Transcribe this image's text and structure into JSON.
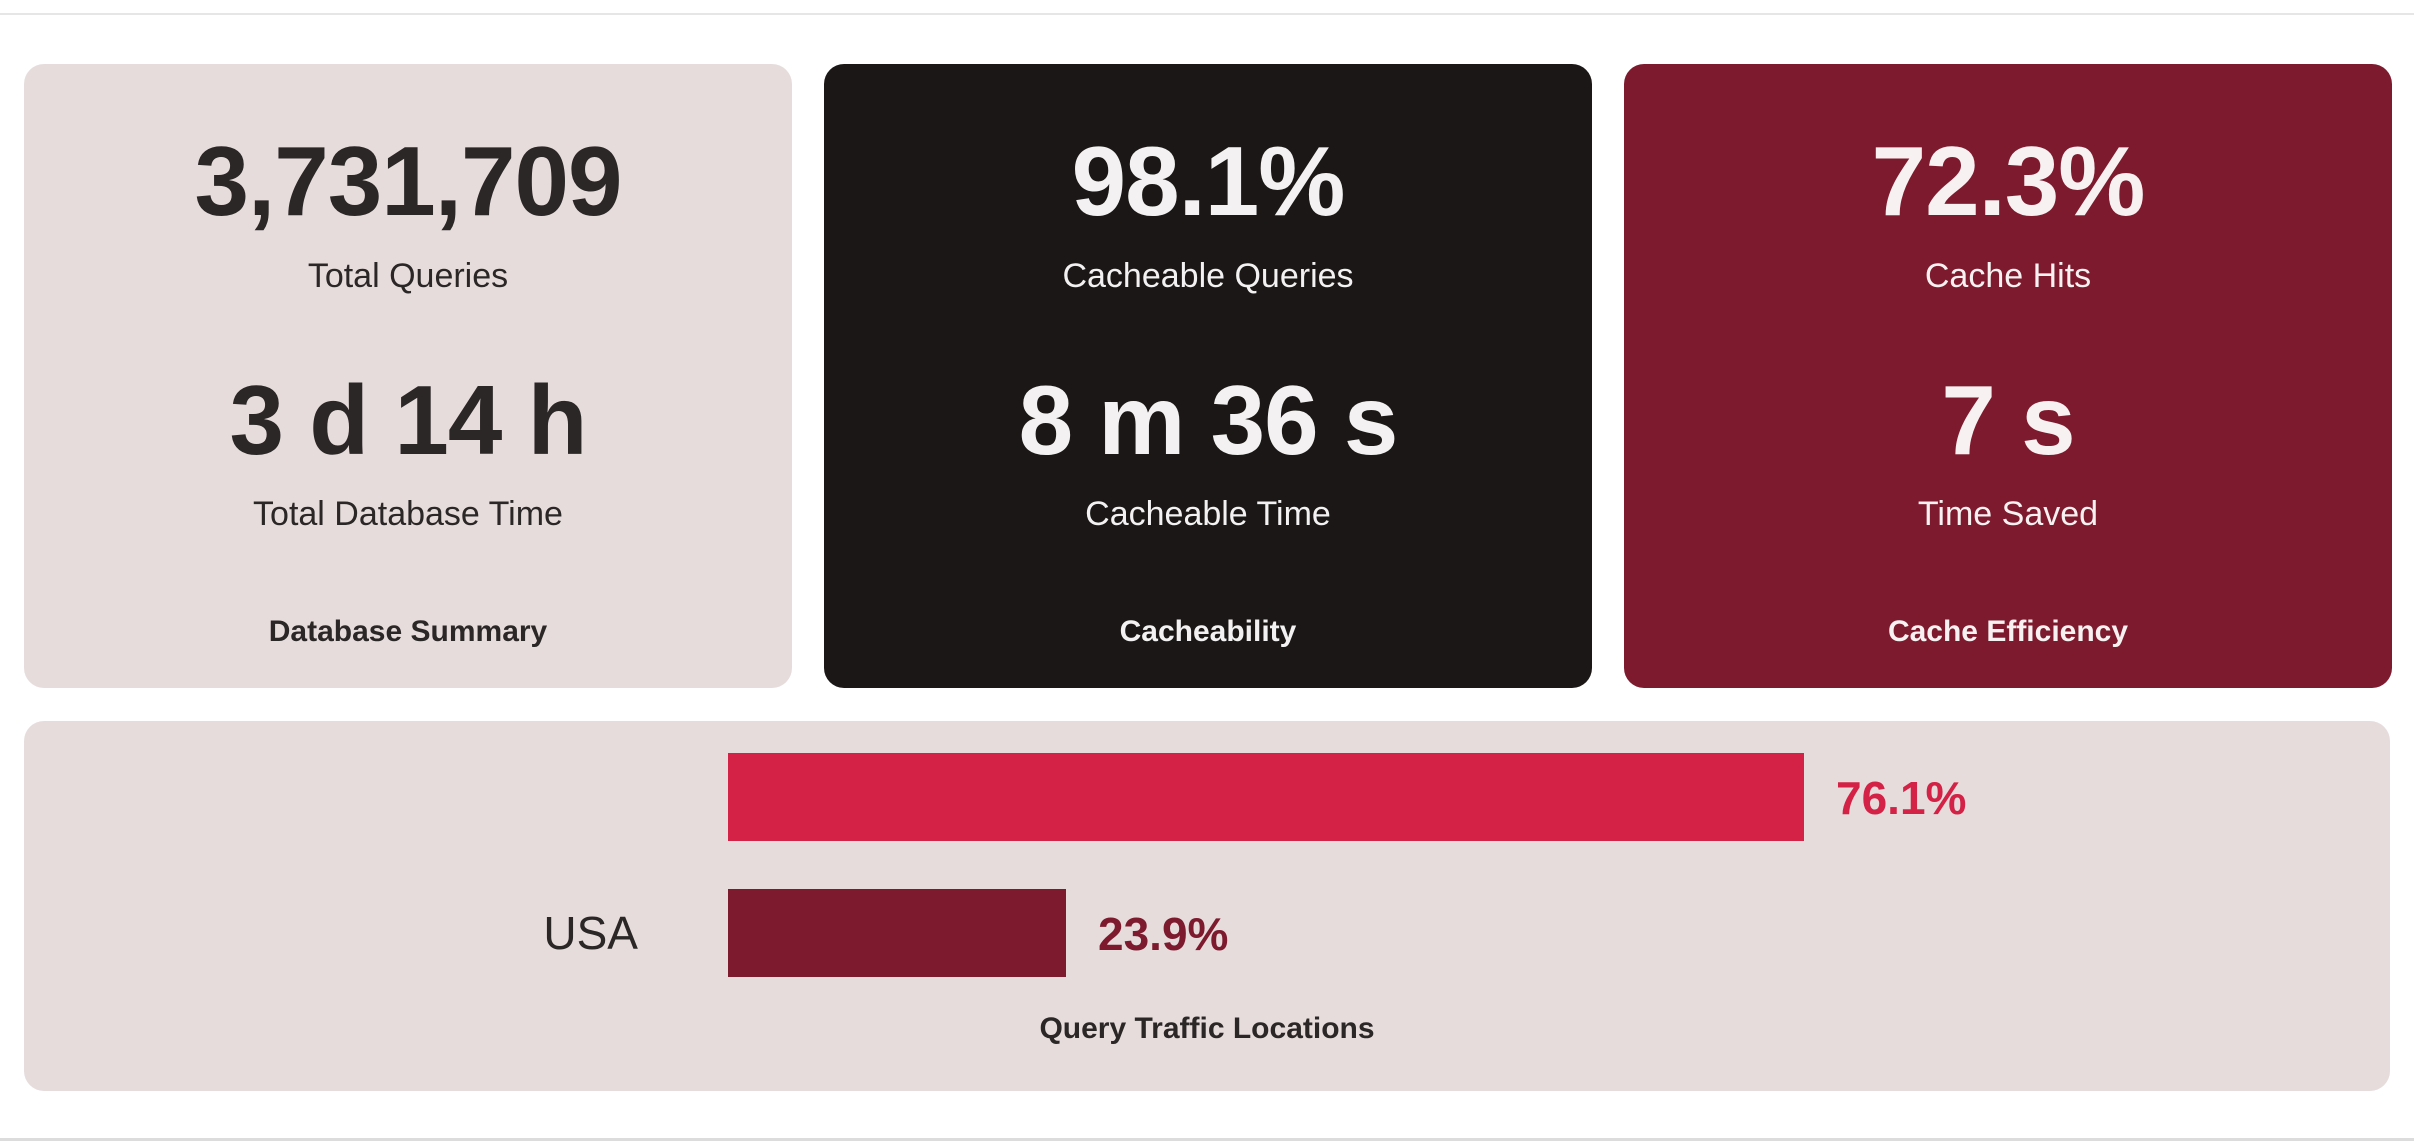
{
  "colors": {
    "summary_bg": "#e6dcdc",
    "cacheability_bg": "#1b1717",
    "efficiency_bg": "#7d1a2e",
    "bar_primary": "#d32245",
    "bar_secondary": "#7d1a2e"
  },
  "cards": {
    "summary": {
      "value1": "3,731,709",
      "label1": "Total Queries",
      "value2": "3 d 14 h",
      "label2": "Total Database Time",
      "title": "Database Summary"
    },
    "cacheability": {
      "value1": "98.1%",
      "label1": "Cacheable Queries",
      "value2": "8 m 36 s",
      "label2": "Cacheable Time",
      "title": "Cacheability"
    },
    "efficiency": {
      "value1": "72.3%",
      "label1": "Cache Hits",
      "value2": "7 s",
      "label2": "Time Saved",
      "title": "Cache Efficiency"
    }
  },
  "chart_data": {
    "type": "bar",
    "orientation": "horizontal",
    "title": "Query Traffic Locations",
    "categories": [
      "",
      "USA"
    ],
    "values": [
      76.1,
      23.9
    ],
    "value_labels": [
      "76.1%",
      "23.9%"
    ],
    "unit": "%"
  }
}
